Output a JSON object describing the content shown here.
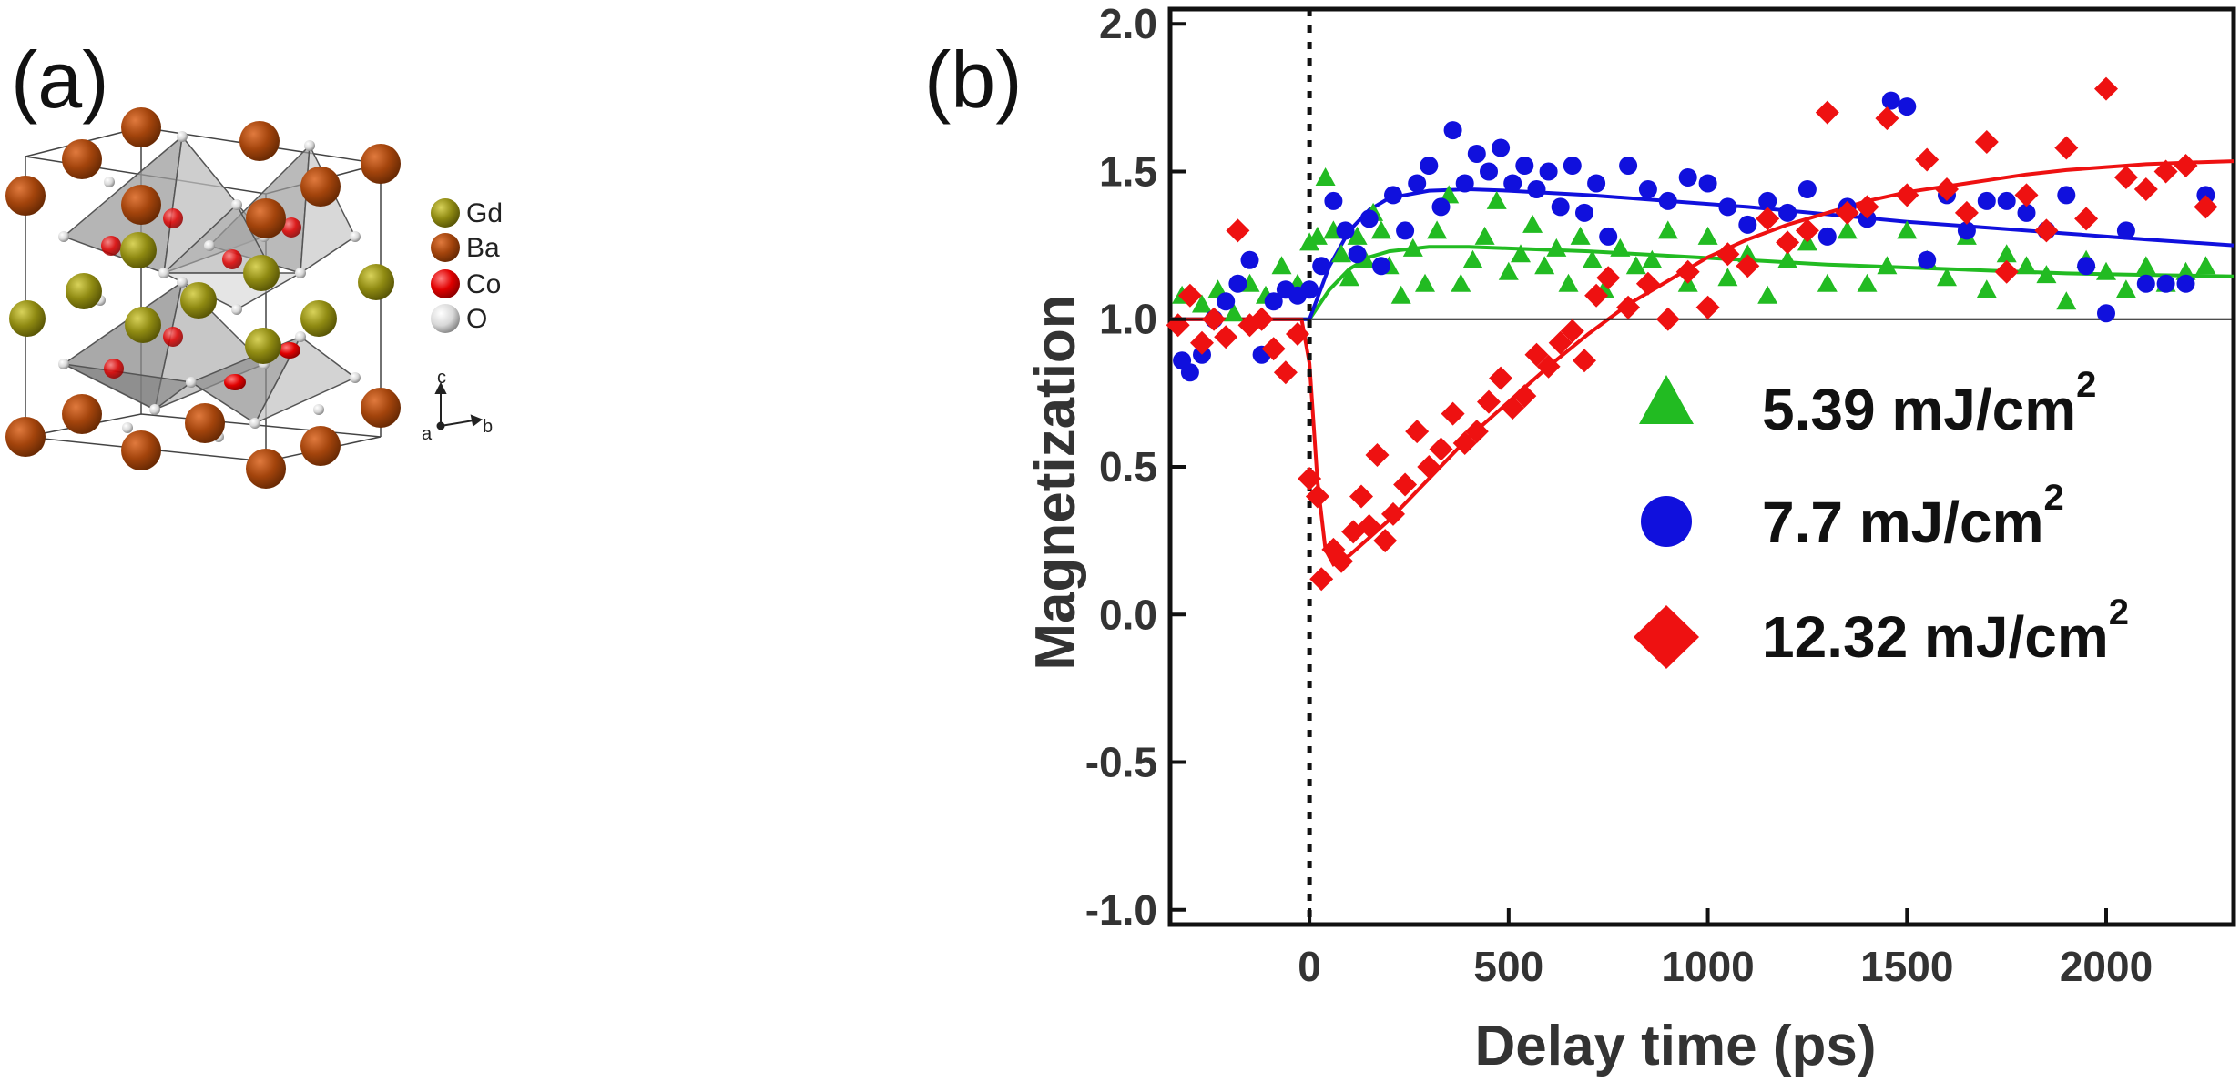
{
  "panel_a": {
    "label": "(a)",
    "legend": [
      {
        "element": "Gd",
        "color": "#8f8a12"
      },
      {
        "element": "Ba",
        "color": "#a3440c"
      },
      {
        "element": "Co",
        "color": "#e00000"
      },
      {
        "element": "O",
        "color": "#d8d8d8"
      }
    ],
    "axes": {
      "c": "c",
      "a": "a",
      "b": "b"
    }
  },
  "panel_b": {
    "label": "(b)"
  },
  "chart_data": {
    "type": "scatter",
    "xlabel": "Delay time (ps)",
    "ylabel": "Magnetization",
    "xlim": [
      -350,
      2320
    ],
    "ylim": [
      -1.05,
      2.05
    ],
    "xticks": [
      0,
      500,
      1000,
      1500,
      2000
    ],
    "xtick_labels": [
      "0",
      "500",
      "1000",
      "1500",
      "2000"
    ],
    "yticks": [
      -1.0,
      -0.5,
      0.0,
      0.5,
      1.0,
      1.5,
      2.0
    ],
    "ytick_labels": [
      "-1.0",
      "-0.5",
      "0.0",
      "0.5",
      "1.0",
      "1.5",
      "2.0"
    ],
    "reference_line_y": 1.0,
    "zero_delay_line_x": 0,
    "legend_position": "right-middle",
    "series": [
      {
        "name": "5.39 mJ/cm",
        "name_sup": "2",
        "marker": "triangle",
        "color": "#22bb22",
        "points": [
          [
            -320,
            1.08
          ],
          [
            -270,
            1.05
          ],
          [
            -230,
            1.1
          ],
          [
            -190,
            1.02
          ],
          [
            -150,
            1.12
          ],
          [
            -110,
            1.08
          ],
          [
            -70,
            1.18
          ],
          [
            -30,
            1.12
          ],
          [
            0,
            1.26
          ],
          [
            20,
            1.28
          ],
          [
            40,
            1.48
          ],
          [
            60,
            1.3
          ],
          [
            80,
            1.22
          ],
          [
            100,
            1.14
          ],
          [
            120,
            1.28
          ],
          [
            140,
            1.2
          ],
          [
            160,
            1.36
          ],
          [
            180,
            1.3
          ],
          [
            200,
            1.18
          ],
          [
            230,
            1.08
          ],
          [
            260,
            1.24
          ],
          [
            290,
            1.12
          ],
          [
            320,
            1.3
          ],
          [
            350,
            1.42
          ],
          [
            380,
            1.12
          ],
          [
            410,
            1.2
          ],
          [
            440,
            1.28
          ],
          [
            470,
            1.4
          ],
          [
            500,
            1.16
          ],
          [
            530,
            1.22
          ],
          [
            560,
            1.32
          ],
          [
            590,
            1.18
          ],
          [
            620,
            1.24
          ],
          [
            650,
            1.12
          ],
          [
            680,
            1.28
          ],
          [
            710,
            1.2
          ],
          [
            740,
            1.1
          ],
          [
            780,
            1.24
          ],
          [
            820,
            1.18
          ],
          [
            860,
            1.2
          ],
          [
            900,
            1.3
          ],
          [
            950,
            1.12
          ],
          [
            1000,
            1.28
          ],
          [
            1050,
            1.14
          ],
          [
            1100,
            1.22
          ],
          [
            1150,
            1.08
          ],
          [
            1200,
            1.2
          ],
          [
            1250,
            1.26
          ],
          [
            1300,
            1.12
          ],
          [
            1350,
            1.3
          ],
          [
            1400,
            1.12
          ],
          [
            1450,
            1.18
          ],
          [
            1500,
            1.3
          ],
          [
            1550,
            1.2
          ],
          [
            1600,
            1.14
          ],
          [
            1650,
            1.28
          ],
          [
            1700,
            1.1
          ],
          [
            1750,
            1.22
          ],
          [
            1800,
            1.18
          ],
          [
            1850,
            1.15
          ],
          [
            1900,
            1.06
          ],
          [
            1950,
            1.2
          ],
          [
            2000,
            1.16
          ],
          [
            2050,
            1.1
          ],
          [
            2100,
            1.18
          ],
          [
            2150,
            1.12
          ],
          [
            2200,
            1.16
          ],
          [
            2250,
            1.18
          ]
        ]
      },
      {
        "name": "7.7 mJ/cm",
        "name_sup": "2",
        "marker": "circle",
        "color": "#1010dd",
        "points": [
          [
            -320,
            0.86
          ],
          [
            -300,
            0.82
          ],
          [
            -270,
            0.88
          ],
          [
            -240,
            1.0
          ],
          [
            -210,
            1.06
          ],
          [
            -180,
            1.12
          ],
          [
            -150,
            1.2
          ],
          [
            -120,
            0.88
          ],
          [
            -90,
            1.06
          ],
          [
            -60,
            1.1
          ],
          [
            -30,
            1.08
          ],
          [
            0,
            1.1
          ],
          [
            30,
            1.18
          ],
          [
            60,
            1.4
          ],
          [
            90,
            1.3
          ],
          [
            120,
            1.22
          ],
          [
            150,
            1.34
          ],
          [
            180,
            1.18
          ],
          [
            210,
            1.42
          ],
          [
            240,
            1.3
          ],
          [
            270,
            1.46
          ],
          [
            300,
            1.52
          ],
          [
            330,
            1.38
          ],
          [
            360,
            1.64
          ],
          [
            390,
            1.46
          ],
          [
            420,
            1.56
          ],
          [
            450,
            1.5
          ],
          [
            480,
            1.58
          ],
          [
            510,
            1.46
          ],
          [
            540,
            1.52
          ],
          [
            570,
            1.44
          ],
          [
            600,
            1.5
          ],
          [
            630,
            1.38
          ],
          [
            660,
            1.52
          ],
          [
            690,
            1.36
          ],
          [
            720,
            1.46
          ],
          [
            750,
            1.28
          ],
          [
            800,
            1.52
          ],
          [
            850,
            1.44
          ],
          [
            900,
            1.4
          ],
          [
            950,
            1.48
          ],
          [
            1000,
            1.46
          ],
          [
            1050,
            1.38
          ],
          [
            1100,
            1.32
          ],
          [
            1150,
            1.4
          ],
          [
            1200,
            1.36
          ],
          [
            1250,
            1.44
          ],
          [
            1300,
            1.28
          ],
          [
            1350,
            1.38
          ],
          [
            1400,
            1.34
          ],
          [
            1460,
            1.74
          ],
          [
            1500,
            1.72
          ],
          [
            1550,
            1.2
          ],
          [
            1600,
            1.42
          ],
          [
            1650,
            1.3
          ],
          [
            1700,
            1.4
          ],
          [
            1750,
            1.4
          ],
          [
            1800,
            1.36
          ],
          [
            1850,
            1.3
          ],
          [
            1900,
            1.42
          ],
          [
            1950,
            1.18
          ],
          [
            2000,
            1.02
          ],
          [
            2050,
            1.3
          ],
          [
            2100,
            1.12
          ],
          [
            2150,
            1.12
          ],
          [
            2200,
            1.12
          ],
          [
            2250,
            1.42
          ]
        ]
      },
      {
        "name": "12.32 mJ/cm",
        "name_sup": "2",
        "marker": "diamond",
        "color": "#ee1111",
        "points": [
          [
            -330,
            0.98
          ],
          [
            -300,
            1.08
          ],
          [
            -270,
            0.92
          ],
          [
            -240,
            1.0
          ],
          [
            -210,
            0.94
          ],
          [
            -180,
            1.3
          ],
          [
            -150,
            0.98
          ],
          [
            -120,
            1.0
          ],
          [
            -90,
            0.9
          ],
          [
            -60,
            0.82
          ],
          [
            -30,
            0.95
          ],
          [
            0,
            0.46
          ],
          [
            20,
            0.4
          ],
          [
            30,
            0.12
          ],
          [
            60,
            0.22
          ],
          [
            80,
            0.18
          ],
          [
            110,
            0.28
          ],
          [
            130,
            0.4
          ],
          [
            150,
            0.3
          ],
          [
            170,
            0.54
          ],
          [
            190,
            0.25
          ],
          [
            210,
            0.34
          ],
          [
            240,
            0.44
          ],
          [
            270,
            0.62
          ],
          [
            300,
            0.5
          ],
          [
            330,
            0.56
          ],
          [
            360,
            0.68
          ],
          [
            390,
            0.58
          ],
          [
            420,
            0.62
          ],
          [
            450,
            0.72
          ],
          [
            480,
            0.8
          ],
          [
            510,
            0.7
          ],
          [
            540,
            0.74
          ],
          [
            570,
            0.88
          ],
          [
            600,
            0.84
          ],
          [
            630,
            0.92
          ],
          [
            660,
            0.96
          ],
          [
            690,
            0.86
          ],
          [
            720,
            1.08
          ],
          [
            750,
            1.14
          ],
          [
            800,
            1.04
          ],
          [
            850,
            1.12
          ],
          [
            900,
            1.0
          ],
          [
            950,
            1.16
          ],
          [
            1000,
            1.04
          ],
          [
            1050,
            1.22
          ],
          [
            1100,
            1.18
          ],
          [
            1150,
            1.34
          ],
          [
            1200,
            1.26
          ],
          [
            1250,
            1.3
          ],
          [
            1300,
            1.7
          ],
          [
            1350,
            1.36
          ],
          [
            1400,
            1.38
          ],
          [
            1450,
            1.68
          ],
          [
            1500,
            1.42
          ],
          [
            1550,
            1.54
          ],
          [
            1600,
            1.44
          ],
          [
            1650,
            1.36
          ],
          [
            1700,
            1.6
          ],
          [
            1750,
            1.16
          ],
          [
            1800,
            1.42
          ],
          [
            1850,
            1.3
          ],
          [
            1900,
            1.58
          ],
          [
            1950,
            1.34
          ],
          [
            2000,
            1.78
          ],
          [
            2050,
            1.48
          ],
          [
            2100,
            1.44
          ],
          [
            2150,
            1.5
          ],
          [
            2200,
            1.52
          ],
          [
            2250,
            1.38
          ]
        ]
      }
    ],
    "fit_curves": [
      {
        "name": "5.39 fit",
        "color": "#22bb22",
        "points": [
          [
            -350,
            1.0
          ],
          [
            0,
            1.0
          ],
          [
            50,
            1.1
          ],
          [
            100,
            1.17
          ],
          [
            150,
            1.21
          ],
          [
            200,
            1.23
          ],
          [
            300,
            1.245
          ],
          [
            400,
            1.245
          ],
          [
            500,
            1.24
          ],
          [
            700,
            1.23
          ],
          [
            900,
            1.215
          ],
          [
            1100,
            1.2
          ],
          [
            1300,
            1.185
          ],
          [
            1500,
            1.175
          ],
          [
            1700,
            1.165
          ],
          [
            1900,
            1.155
          ],
          [
            2100,
            1.15
          ],
          [
            2320,
            1.145
          ]
        ]
      },
      {
        "name": "7.7 fit",
        "color": "#1010dd",
        "points": [
          [
            -350,
            1.0
          ],
          [
            0,
            1.0
          ],
          [
            50,
            1.18
          ],
          [
            100,
            1.3
          ],
          [
            150,
            1.37
          ],
          [
            200,
            1.41
          ],
          [
            300,
            1.435
          ],
          [
            400,
            1.44
          ],
          [
            500,
            1.435
          ],
          [
            700,
            1.42
          ],
          [
            900,
            1.4
          ],
          [
            1100,
            1.38
          ],
          [
            1300,
            1.355
          ],
          [
            1500,
            1.33
          ],
          [
            1700,
            1.31
          ],
          [
            1900,
            1.29
          ],
          [
            2100,
            1.27
          ],
          [
            2320,
            1.25
          ]
        ]
      },
      {
        "name": "12.32 fit",
        "color": "#ee1111",
        "points": [
          [
            -350,
            1.0
          ],
          [
            -20,
            1.0
          ],
          [
            0,
            0.85
          ],
          [
            20,
            0.45
          ],
          [
            40,
            0.22
          ],
          [
            60,
            0.17
          ],
          [
            100,
            0.2
          ],
          [
            200,
            0.32
          ],
          [
            300,
            0.46
          ],
          [
            400,
            0.6
          ],
          [
            500,
            0.72
          ],
          [
            600,
            0.84
          ],
          [
            700,
            0.95
          ],
          [
            800,
            1.05
          ],
          [
            900,
            1.13
          ],
          [
            1000,
            1.21
          ],
          [
            1100,
            1.27
          ],
          [
            1200,
            1.32
          ],
          [
            1300,
            1.36
          ],
          [
            1400,
            1.4
          ],
          [
            1500,
            1.43
          ],
          [
            1600,
            1.45
          ],
          [
            1700,
            1.47
          ],
          [
            1800,
            1.49
          ],
          [
            1900,
            1.505
          ],
          [
            2000,
            1.515
          ],
          [
            2100,
            1.525
          ],
          [
            2200,
            1.53
          ],
          [
            2320,
            1.535
          ]
        ]
      }
    ]
  }
}
